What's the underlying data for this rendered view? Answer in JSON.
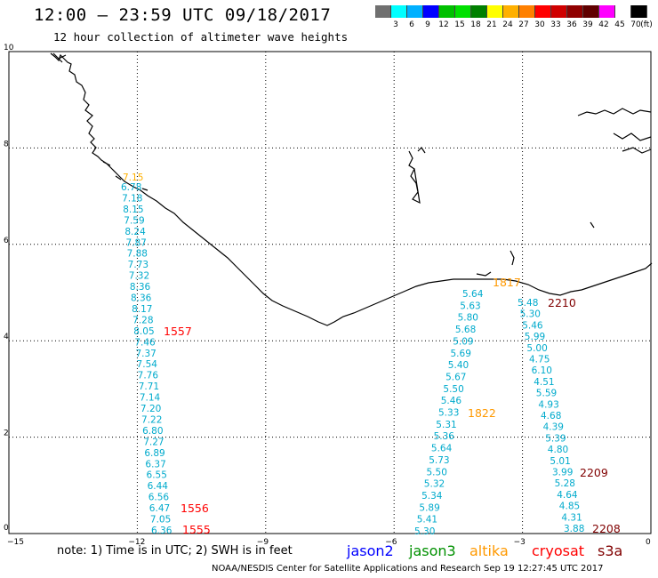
{
  "header": {
    "title": "12:00 – 23:59 UTC 09/18/2017",
    "subtitle": "12 hour collection of altimeter wave heights"
  },
  "legend": {
    "colors": [
      "#707070",
      "#00ffff",
      "#00b0ff",
      "#0000ff",
      "#00c000",
      "#00e000",
      "#008000",
      "#ffff00",
      "#ffb000",
      "#ff8000",
      "#ff0000",
      "#d00000",
      "#900000",
      "#600000",
      "#ff00ff",
      "#ffffff",
      "#000000"
    ],
    "labels": [
      "",
      "3",
      "6",
      "9",
      "12",
      "15",
      "18",
      "21",
      "24",
      "27",
      "30",
      "33",
      "36",
      "39",
      "42",
      "45",
      "70",
      "(ft)"
    ]
  },
  "map": {
    "lon_ticks": [
      "−15",
      "−12",
      "−9",
      "−6",
      "−3",
      "0"
    ],
    "lat_ticks": [
      "0",
      "2",
      "4",
      "6",
      "8",
      "10"
    ]
  },
  "tracks": {
    "west_values": [
      "6.78",
      "7.18",
      "8.15",
      "7.59",
      "8.24",
      "7.87",
      "7.88",
      "7.73",
      "7.32",
      "8.36",
      "8.36",
      "8.17",
      "7.28",
      "8.05",
      "7.46",
      "7.37",
      "7.54",
      "7.76",
      "7.71",
      "7.14",
      "7.20",
      "7.22",
      "6.80",
      "7.27",
      "6.89",
      "6.37",
      "6.55",
      "6.44",
      "6.56",
      "6.47",
      "7.05",
      "6.36"
    ],
    "mid_values": [
      "5.64",
      "5.63",
      "5.80",
      "5.68",
      "5.09",
      "5.69",
      "5.40",
      "5.67",
      "5.50",
      "5.46",
      "5.33",
      "5.31",
      "5.36",
      "5.64",
      "5.73",
      "5.50",
      "5.32",
      "5.34",
      "5.89",
      "5.41",
      "5.30"
    ],
    "east_values": [
      "5.48",
      "5.30",
      "5.46",
      "5.99",
      "5.00",
      "4.75",
      "6.10",
      "4.51",
      "5.59",
      "4.93",
      "4.68",
      "4.39",
      "5.39",
      "4.80",
      "5.01",
      "3.99",
      "5.28",
      "4.64",
      "4.85",
      "4.31",
      "3.88"
    ],
    "west_extra": "7.15",
    "times": {
      "t1557": "1557",
      "t1556": "1556",
      "t1555": "1555",
      "t1822": "1822",
      "t1817": "1817",
      "t2210": "2210",
      "t2209": "2209",
      "t2208": "2208"
    }
  },
  "footer": {
    "note": "note:  1) Time is in UTC;  2) SWH is in feet",
    "satellites": {
      "jason2": "jason2",
      "jason3": "jason3",
      "altika": "altika",
      "cryosat": "cryosat",
      "s3a": "s3a"
    },
    "credit": "NOAA/NESDIS Center for Satellite Applications and Research    Sep 19 12:27:45 UTC 2017"
  }
}
